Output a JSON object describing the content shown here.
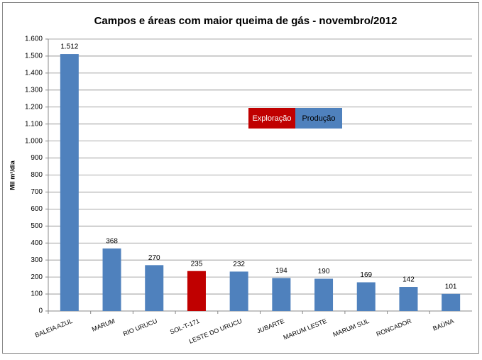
{
  "chart_data": {
    "type": "bar",
    "title": "Campos e áreas com maior queima de gás - novembro/2012",
    "y_label": "Mil m³/dia",
    "categories": [
      "BALEIA AZUL",
      "MARUM",
      "RIO URUCU",
      "SOL-T-171",
      "LESTE DO URUCU",
      "JUBARTE",
      "MARUM LESTE",
      "MARUM SUL",
      "RONCADOR",
      "BAÚNA"
    ],
    "values": [
      1512,
      368,
      270,
      235,
      232,
      194,
      190,
      169,
      142,
      101
    ],
    "value_labels": [
      "1.512",
      "368",
      "270",
      "235",
      "232",
      "194",
      "190",
      "169",
      "142",
      "101"
    ],
    "colors": [
      "#4f81bd",
      "#4f81bd",
      "#4f81bd",
      "#c00000",
      "#4f81bd",
      "#4f81bd",
      "#4f81bd",
      "#4f81bd",
      "#4f81bd",
      "#4f81bd"
    ],
    "legend": [
      {
        "name": "Exploração",
        "color": "#c00000"
      },
      {
        "name": "Produção",
        "color": "#4f81bd"
      }
    ],
    "ylim": [
      0,
      1600
    ],
    "yticks": [
      0,
      100,
      200,
      300,
      400,
      500,
      600,
      700,
      800,
      900,
      {
        "value": 1000,
        "label": "1.000"
      },
      {
        "value": 1100,
        "label": "1.100"
      },
      {
        "value": 1200,
        "label": "1.200"
      },
      {
        "value": 1300,
        "label": "1.300"
      },
      {
        "value": 1400,
        "label": "1.400"
      },
      {
        "value": 1500,
        "label": "1.500"
      },
      {
        "value": 1600,
        "label": "1.600"
      }
    ],
    "grid": true
  }
}
